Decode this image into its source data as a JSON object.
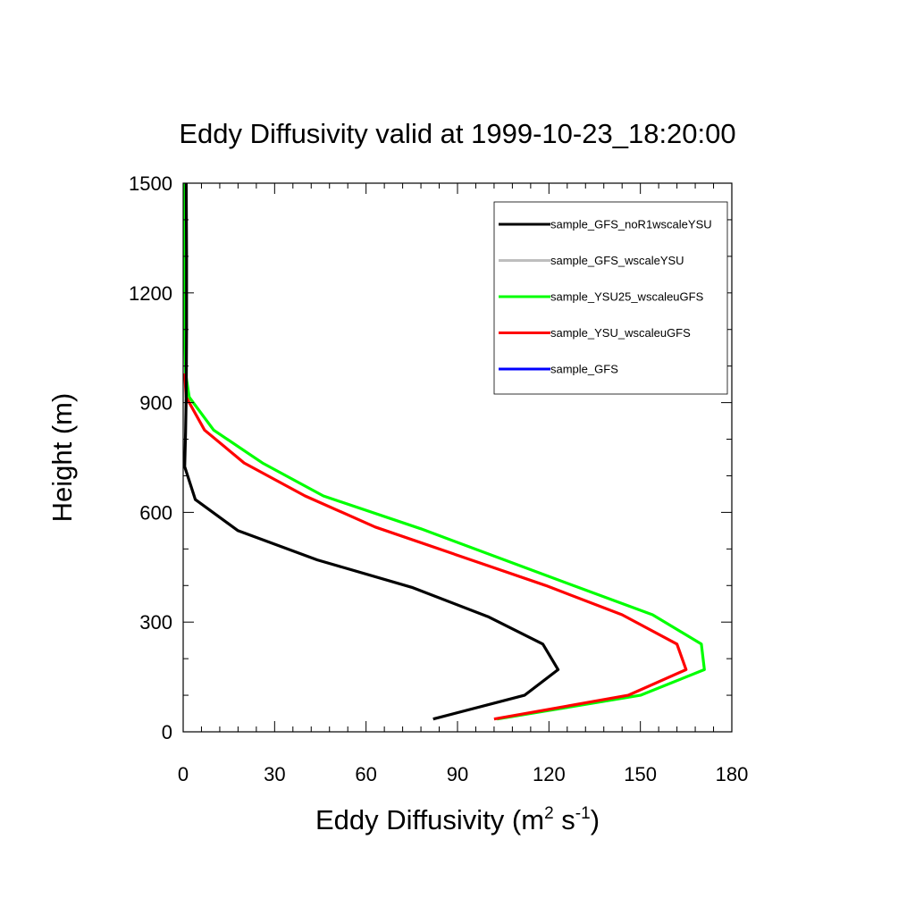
{
  "chart_data": {
    "type": "line",
    "title": "Eddy Diffusivity valid at 1999-10-23_18:20:00",
    "xlabel": {
      "main": "Eddy Diffusivity (m",
      "sup1": "2",
      "mid": " s",
      "sup2": "-1",
      "end": ")"
    },
    "ylabel": "Height (m)",
    "xlim": [
      0,
      180
    ],
    "ylim": [
      0,
      1500
    ],
    "xticks": [
      0,
      30,
      60,
      90,
      120,
      150,
      180
    ],
    "yticks": [
      0,
      300,
      600,
      900,
      1200,
      1500
    ],
    "xtick_labels": [
      "0",
      "30",
      "60",
      "90",
      "120",
      "150",
      "180"
    ],
    "ytick_labels": [
      "0",
      "300",
      "600",
      "900",
      "1200",
      "1500"
    ],
    "grid": false,
    "legend_position": "top-right",
    "series": [
      {
        "name": "sample_GFS_noR1wscaleYSU",
        "color": "#000000",
        "x": [
          82,
          112,
          123,
          118,
          100,
          75,
          44,
          18,
          4,
          0.5,
          0.8,
          1,
          1.1,
          1.1,
          1
        ],
        "y": [
          35,
          100,
          170,
          240,
          315,
          395,
          470,
          550,
          635,
          725,
          820,
          920,
          1100,
          1300,
          1500
        ]
      },
      {
        "name": "sample_GFS_wscaleYSU",
        "color": "#bebebe",
        "x": [],
        "y": []
      },
      {
        "name": "sample_YSU25_wscaleuGFS",
        "color": "#00ff00",
        "x": [
          103,
          150,
          171,
          170,
          154,
          128,
          78,
          46,
          26,
          10,
          2,
          0.8,
          0.5,
          0.5,
          0.5
        ],
        "y": [
          35,
          100,
          170,
          240,
          320,
          400,
          555,
          645,
          735,
          825,
          915,
          980,
          1100,
          1300,
          1500
        ]
      },
      {
        "name": "sample_YSU_wscaleuGFS",
        "color": "#ff0000",
        "x": [
          102,
          146,
          165,
          162,
          144,
          119,
          63,
          40,
          20,
          7,
          1,
          0.5
        ],
        "y": [
          35,
          100,
          170,
          240,
          320,
          400,
          560,
          645,
          735,
          825,
          915,
          980
        ]
      },
      {
        "name": "sample_GFS",
        "color": "#0000ff",
        "x": [],
        "y": []
      }
    ]
  }
}
